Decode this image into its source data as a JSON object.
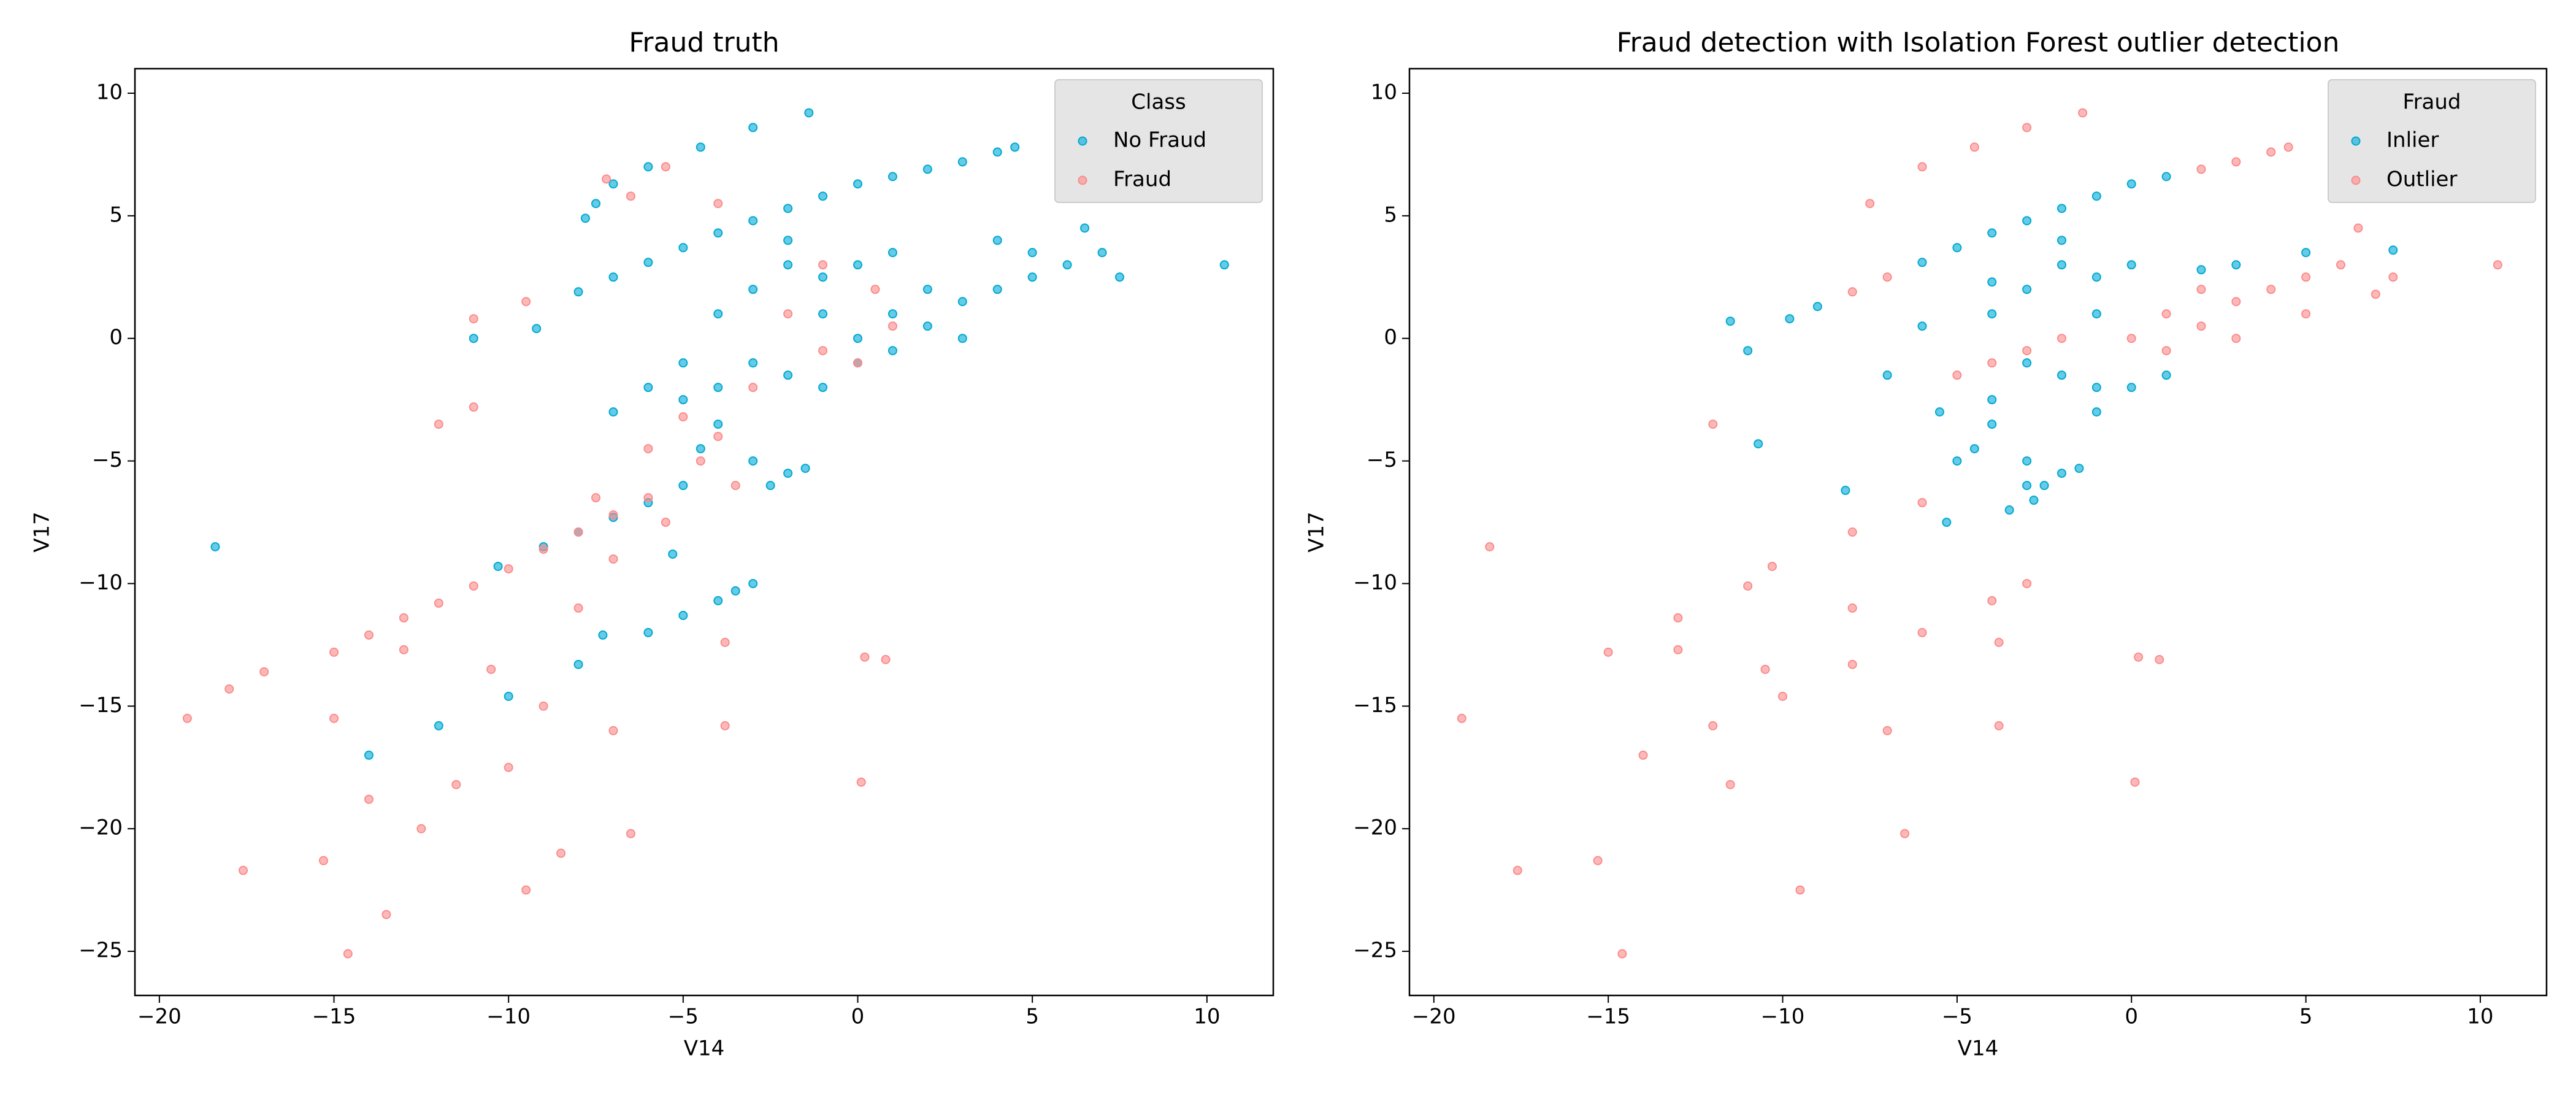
{
  "chart_data": [
    {
      "type": "scatter",
      "title": "Fraud truth",
      "x_label": "V14",
      "y_label": "V17",
      "legend_title": "Class",
      "legend": "upper right",
      "xlim": [
        -20.7,
        11.9
      ],
      "ylim": [
        -26.8,
        11.0
      ],
      "xticks": [
        {
          "value": -20,
          "label": "−20"
        },
        {
          "value": -15,
          "label": "−15"
        },
        {
          "value": -10,
          "label": "−10"
        },
        {
          "value": -5,
          "label": "−5"
        },
        0,
        5,
        10
      ],
      "yticks": [
        {
          "value": -25,
          "label": "−25"
        },
        {
          "value": -20,
          "label": "−20"
        },
        {
          "value": -15,
          "label": "−15"
        },
        {
          "value": -10,
          "label": "−10"
        },
        {
          "value": -5,
          "label": "−5"
        },
        0,
        5,
        10
      ],
      "series": [
        {
          "name": "No Fraud",
          "color": "#00a9d4",
          "x": [
            -8,
            -7,
            -6,
            -5,
            -4,
            -3,
            -2,
            -1,
            0,
            1,
            2,
            3,
            4,
            4.5,
            -4,
            -3,
            -2,
            -1,
            0,
            1,
            2,
            3,
            4,
            5,
            -3,
            -2,
            -1,
            0,
            1,
            2,
            3,
            -4,
            -5,
            -2,
            0,
            1,
            -1,
            5,
            6,
            7,
            7.5,
            6.5,
            4,
            -6,
            -5,
            -7,
            -4,
            -3,
            -2.5,
            -2,
            -1.5,
            -4.5,
            -14,
            -12,
            -10,
            -8,
            -6,
            -5,
            -4,
            -3.5,
            -3,
            -10.3,
            -9,
            -8,
            -7,
            -6,
            -5,
            10.5,
            -18.4,
            -3,
            -1.4,
            -7.5,
            -7,
            -7.8,
            -6,
            -4.5,
            -11,
            -9.2,
            -7.3,
            -5.3
          ],
          "values": [
            1.9,
            2.5,
            3.1,
            3.7,
            4.3,
            4.8,
            5.3,
            5.8,
            6.3,
            6.6,
            6.9,
            7.2,
            7.6,
            7.8,
            1,
            2,
            3,
            1,
            0,
            1,
            2,
            1.5,
            2,
            2.5,
            -1,
            -1.5,
            -2,
            -1,
            -0.5,
            0.5,
            0,
            -2,
            -2.5,
            4,
            3,
            3.5,
            2.5,
            3.5,
            3,
            3.5,
            2.5,
            4.5,
            4,
            -2,
            -1,
            -3,
            -3.5,
            -5,
            -6,
            -5.5,
            -5.3,
            -4.5,
            -17,
            -15.8,
            -14.6,
            -13.3,
            -12,
            -11.3,
            -10.7,
            -10.3,
            -10,
            -9.3,
            -8.5,
            -7.9,
            -7.3,
            -6.7,
            -6,
            3,
            -8.5,
            8.6,
            9.2,
            5.5,
            6.3,
            4.9,
            7,
            7.8,
            0,
            0.4,
            -12.1,
            -8.8
          ]
        },
        {
          "name": "Fraud",
          "color": "#fc8b8b",
          "x": [
            -19.2,
            -18,
            -17.6,
            -17,
            -15.3,
            -15,
            -14.6,
            -14,
            -13.5,
            -13,
            -12.5,
            -12,
            -11.5,
            -11,
            -11,
            -10.5,
            -10,
            -9.5,
            -9,
            -8.5,
            -8,
            -7.5,
            -7,
            -7,
            -6.5,
            -6,
            -5.5,
            -5,
            -4.5,
            -4,
            -3.5,
            -3,
            -2,
            -1,
            0,
            0.5,
            1,
            -1,
            0.2,
            0.8,
            0.1,
            -3.8,
            -3.8,
            -7.2,
            -6.5,
            -5.5,
            -4,
            -9.5,
            -15,
            -14,
            -13,
            -12,
            -11,
            -10,
            -9,
            -8,
            -7,
            -6
          ],
          "values": [
            -15.5,
            -14.3,
            -21.7,
            -13.6,
            -21.3,
            -15.5,
            -25.1,
            -18.8,
            -23.5,
            -12.7,
            -20,
            -3.5,
            -18.2,
            -2.8,
            0.8,
            -13.5,
            -17.5,
            -22.5,
            -15,
            -21,
            -11,
            -6.5,
            -9,
            -16,
            -20.2,
            -4.5,
            -7.5,
            -3.2,
            -5,
            -4,
            -6,
            -2,
            1,
            -0.5,
            -1,
            2,
            0.5,
            3,
            -13,
            -13.1,
            -18.1,
            -12.4,
            -15.8,
            6.5,
            5.8,
            7,
            5.5,
            1.5,
            -12.8,
            -12.1,
            -11.4,
            -10.8,
            -10.1,
            -9.4,
            -8.6,
            -7.9,
            -7.2,
            -6.5
          ]
        }
      ]
    },
    {
      "type": "scatter",
      "title": "Fraud detection with Isolation Forest outlier detection",
      "x_label": "V14",
      "y_label": "V17",
      "legend_title": "Fraud",
      "legend": "upper right",
      "xlim": [
        -20.7,
        11.9
      ],
      "ylim": [
        -26.8,
        11.0
      ],
      "xticks": [
        {
          "value": -20,
          "label": "−20"
        },
        {
          "value": -15,
          "label": "−15"
        },
        {
          "value": -10,
          "label": "−10"
        },
        {
          "value": -5,
          "label": "−5"
        },
        0,
        5,
        10
      ],
      "yticks": [
        {
          "value": -25,
          "label": "−25"
        },
        {
          "value": -20,
          "label": "−20"
        },
        {
          "value": -15,
          "label": "−15"
        },
        {
          "value": -10,
          "label": "−10"
        },
        {
          "value": -5,
          "label": "−5"
        },
        0,
        5,
        10
      ],
      "series": [
        {
          "name": "Inlier",
          "color": "#00a9d4",
          "x": [
            -6,
            -5,
            -4,
            -3,
            -2,
            -1,
            0,
            1,
            -4,
            -3,
            -2,
            -1,
            -2,
            -1,
            0,
            -3,
            -2,
            -1,
            0,
            1,
            -4,
            -3,
            -2.5,
            -2,
            -1.5,
            -4.5,
            -3.5,
            -5,
            -2.8,
            -4,
            -5.5,
            -7,
            -6,
            -10.7,
            -8.2,
            -11.5,
            -11,
            -9.8,
            -9,
            -5.3,
            -3,
            7.5,
            5,
            2,
            3,
            -4,
            -1
          ],
          "values": [
            3.1,
            3.7,
            4.3,
            4.8,
            5.3,
            5.8,
            6.3,
            6.6,
            1,
            2,
            3,
            1,
            4,
            2.5,
            3,
            -1,
            -1.5,
            -2,
            -2,
            -1.5,
            -3.5,
            -5,
            -6,
            -5.5,
            -5.3,
            -4.5,
            -7,
            -5,
            -6.6,
            -2.5,
            -3,
            -1.5,
            0.5,
            -4.3,
            -6.2,
            0.7,
            -0.5,
            0.8,
            1.3,
            -7.5,
            -6,
            3.6,
            3.5,
            2.8,
            3,
            2.3,
            -3
          ]
        },
        {
          "name": "Outlier",
          "color": "#fc8b8b",
          "x": [
            -8,
            -7,
            2,
            3,
            4,
            4.5,
            0,
            1,
            2,
            3,
            4,
            5,
            1,
            2,
            3,
            -2,
            -3,
            -4,
            -5,
            6,
            7,
            7.5,
            6.5,
            5,
            10.5,
            -18.4,
            -3,
            -1.4,
            -7.5,
            -6,
            -4.5,
            -14,
            -12,
            -10,
            -8,
            -6,
            -4,
            -3,
            -10.3,
            -8,
            -6,
            -19.2,
            -17.6,
            -15.3,
            -14.6,
            -13,
            -12,
            -11.5,
            -10.5,
            -9.5,
            -8,
            -7,
            -6.5,
            -15,
            -13,
            -11,
            0.2,
            0.8,
            0.1,
            -3.8,
            -3.8
          ],
          "values": [
            1.9,
            2.5,
            6.9,
            7.2,
            7.6,
            7.8,
            0,
            1,
            2,
            1.5,
            2,
            2.5,
            -0.5,
            0.5,
            0,
            0,
            -0.5,
            -1,
            -1.5,
            3,
            1.8,
            2.5,
            4.5,
            1,
            3,
            -8.5,
            8.6,
            9.2,
            5.5,
            7,
            7.8,
            -17,
            -15.8,
            -14.6,
            -13.3,
            -12,
            -10.7,
            -10,
            -9.3,
            -7.9,
            -6.7,
            -15.5,
            -21.7,
            -21.3,
            -25.1,
            -12.7,
            -3.5,
            -18.2,
            -13.5,
            -22.5,
            -11,
            -16,
            -20.2,
            -12.8,
            -11.4,
            -10.1,
            -13,
            -13.1,
            -18.1,
            -15.8,
            -12.4
          ]
        }
      ]
    }
  ]
}
